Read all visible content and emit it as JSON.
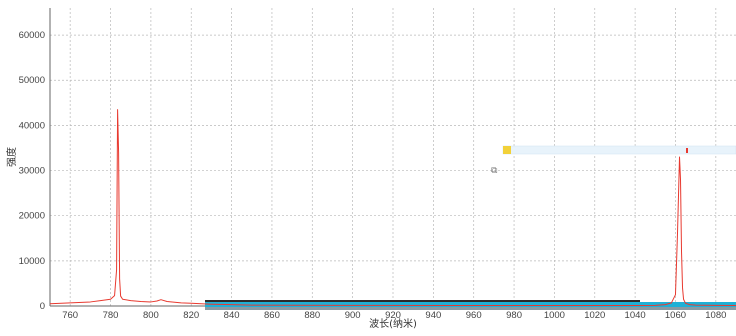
{
  "chart_data": {
    "type": "line",
    "title": "",
    "xlabel": "波长(纳米)",
    "ylabel": "强度",
    "xlim": [
      750,
      1090
    ],
    "ylim": [
      0,
      66000
    ],
    "x_ticks": [
      760,
      780,
      800,
      820,
      840,
      860,
      880,
      900,
      920,
      940,
      960,
      980,
      1000,
      1020,
      1040,
      1060,
      1080
    ],
    "y_ticks": [
      0,
      10000,
      20000,
      30000,
      40000,
      50000,
      60000
    ],
    "grid": true,
    "series": [
      {
        "color": "#e8392f",
        "x": [
          750,
          760,
          770,
          775,
          780,
          782,
          783,
          783.5,
          784,
          784.5,
          785,
          786,
          790,
          795,
          800,
          803,
          805,
          808,
          815,
          820,
          830,
          840,
          850,
          900,
          950,
          1000,
          1040,
          1050,
          1055,
          1058,
          1060,
          1061,
          1062,
          1062.5,
          1063,
          1063.5,
          1064,
          1065,
          1067,
          1070,
          1080,
          1090
        ],
        "y": [
          500,
          700,
          900,
          1200,
          1500,
          2300,
          8000,
          43500,
          34000,
          6000,
          2200,
          1500,
          1200,
          1000,
          900,
          1100,
          1400,
          1000,
          700,
          600,
          400,
          300,
          200,
          150,
          100,
          100,
          100,
          150,
          300,
          700,
          2500,
          16000,
          33000,
          28000,
          12000,
          4000,
          1500,
          600,
          300,
          200,
          150,
          100
        ]
      }
    ]
  }
}
